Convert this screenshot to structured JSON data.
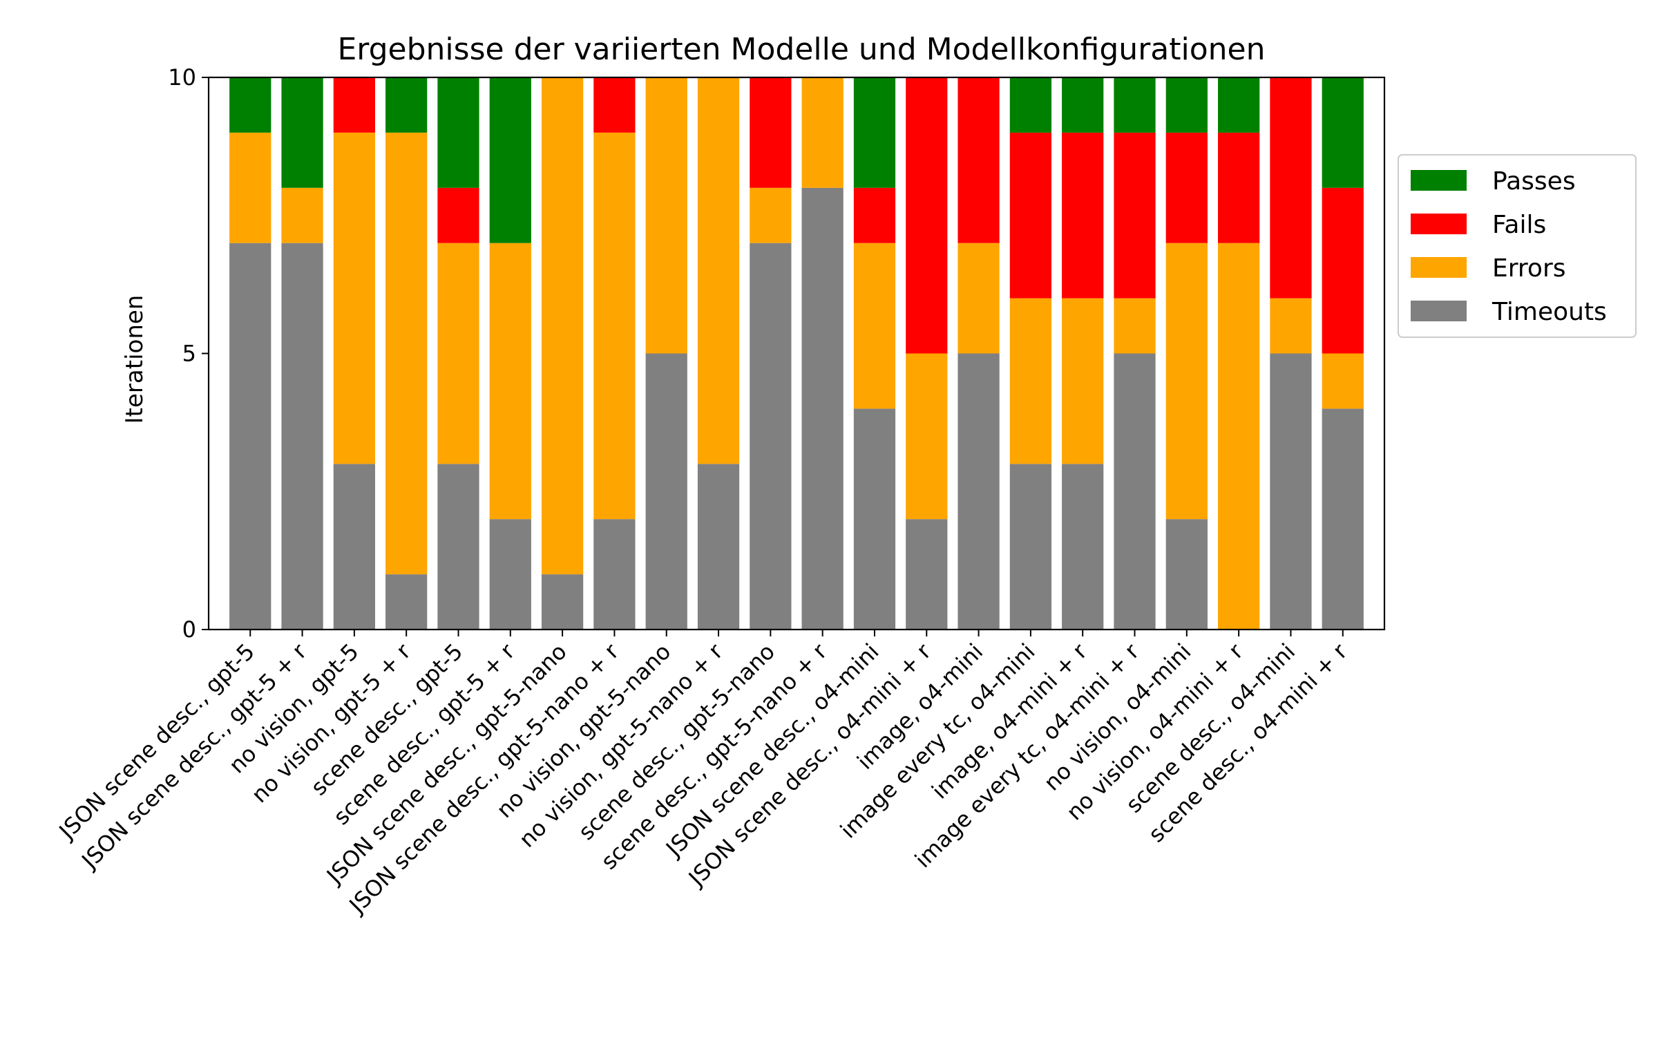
{
  "chart_data": {
    "type": "bar",
    "stacked": true,
    "title": "Ergebnisse der variierten Modelle und Modellkonfigurationen",
    "xlabel": "",
    "ylabel": "Iterationen",
    "ylim": [
      0,
      10
    ],
    "yticks": [
      0,
      5,
      10
    ],
    "grid": false,
    "legend_position": "outside-right",
    "categories": [
      "JSON scene desc., gpt-5",
      "JSON scene desc., gpt-5 + r",
      "no vision, gpt-5",
      "no vision, gpt-5 + r",
      "scene desc., gpt-5",
      "scene desc., gpt-5 + r",
      "JSON scene desc., gpt-5-nano",
      "JSON scene desc., gpt-5-nano + r",
      "no vision, gpt-5-nano",
      "no vision, gpt-5-nano + r",
      "scene desc., gpt-5-nano",
      "scene desc., gpt-5-nano + r",
      "JSON scene desc., o4-mini",
      "JSON scene desc., o4-mini + r",
      "image, o4-mini",
      "image every tc, o4-mini",
      "image, o4-mini + r",
      "image every tc, o4-mini + r",
      "no vision, o4-mini",
      "no vision, o4-mini + r",
      "scene desc., o4-mini",
      "scene desc., o4-mini + r"
    ],
    "series": [
      {
        "name": "Timeouts",
        "color": "#808080",
        "values": [
          7,
          7,
          3,
          1,
          3,
          2,
          1,
          2,
          5,
          3,
          7,
          8,
          4,
          2,
          5,
          3,
          3,
          5,
          2,
          0,
          5,
          4
        ]
      },
      {
        "name": "Errors",
        "color": "#ffa500",
        "values": [
          2,
          1,
          6,
          8,
          4,
          5,
          9,
          7,
          5,
          7,
          1,
          2,
          3,
          3,
          2,
          3,
          3,
          1,
          5,
          7,
          1,
          1
        ]
      },
      {
        "name": "Fails",
        "color": "#ff0000",
        "values": [
          0,
          0,
          1,
          0,
          1,
          0,
          0,
          1,
          0,
          0,
          2,
          0,
          1,
          5,
          3,
          3,
          3,
          3,
          2,
          2,
          4,
          3
        ]
      },
      {
        "name": "Passes",
        "color": "#008000",
        "values": [
          1,
          2,
          0,
          1,
          2,
          3,
          0,
          0,
          0,
          0,
          0,
          0,
          2,
          0,
          0,
          1,
          1,
          1,
          1,
          1,
          0,
          2
        ]
      }
    ],
    "legend_order": [
      "Passes",
      "Fails",
      "Errors",
      "Timeouts"
    ]
  }
}
